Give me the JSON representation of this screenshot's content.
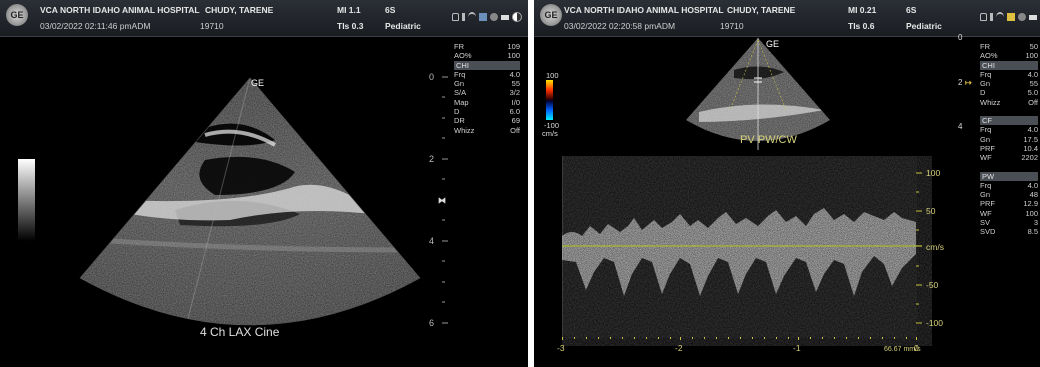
{
  "left_panel": {
    "logo_text": "GE",
    "hospital": "VCA NORTH IDAHO ANIMAL HOSPITAL",
    "patient": "CHUDY, TARENE",
    "datetime": "03/02/2022 02:11:46 pmADM",
    "patient_id": "19710",
    "mi": "MI 1.1",
    "tis": "TIs 0.3",
    "probe": "6S",
    "preset": "Pediatric",
    "orientation_marker": "GE",
    "caption": "4 Ch LAX Cine",
    "depth_ticks": [
      "0",
      "2",
      "4",
      "6"
    ],
    "params": [
      {
        "label": "FR",
        "value": "109"
      },
      {
        "label": "AO%",
        "value": "100"
      },
      {
        "section": "CHI"
      },
      {
        "label": "Frq",
        "value": "4.0"
      },
      {
        "label": "Gn",
        "value": "55"
      },
      {
        "label": "S/A",
        "value": "3/2"
      },
      {
        "label": "Map",
        "value": "I/0"
      },
      {
        "label": "D",
        "value": "6.0"
      },
      {
        "label": "DR",
        "value": "69"
      },
      {
        "label": "Whizz",
        "value": "Off"
      }
    ]
  },
  "right_panel": {
    "logo_text": "GE",
    "hospital": "VCA NORTH IDAHO ANIMAL HOSPITAL",
    "patient": "CHUDY, TARENE",
    "datetime": "03/02/2022 02:20:58 pmADM",
    "patient_id": "19710",
    "mi": "MI 0.21",
    "tis": "TIs 0.6",
    "probe": "6S",
    "preset": "Pediatric",
    "orientation_marker": "GE",
    "doppler_label": "PV PW/CW",
    "color_bar_top": "100",
    "color_bar_bottom": "-100",
    "color_bar_unit": "cm/s",
    "depth_ticks": [
      "0",
      "2",
      "4"
    ],
    "velocity_ticks": [
      "100",
      "50",
      "cm/s",
      "-50",
      "-100"
    ],
    "time_ticks": [
      "-3",
      "-2",
      "-1",
      "0"
    ],
    "sweep_speed": "66.67 mm/s",
    "params": [
      {
        "label": "FR",
        "value": "50"
      },
      {
        "label": "AO%",
        "value": "100"
      },
      {
        "section": "CHI"
      },
      {
        "label": "Frq",
        "value": "4.0"
      },
      {
        "label": "Gn",
        "value": "55"
      },
      {
        "label": "D",
        "value": "5.0"
      },
      {
        "label": "Whizz",
        "value": "Off"
      },
      {
        "gap": true
      },
      {
        "section": "CF"
      },
      {
        "label": "Frq",
        "value": "4.0"
      },
      {
        "label": "Gn",
        "value": "17.5"
      },
      {
        "label": "PRF",
        "value": "10.4"
      },
      {
        "label": "WF",
        "value": "2202"
      },
      {
        "gap": true
      },
      {
        "section": "PW"
      },
      {
        "label": "Frq",
        "value": "4.0"
      },
      {
        "label": "Gn",
        "value": "48"
      },
      {
        "label": "PRF",
        "value": "12.9"
      },
      {
        "label": "WF",
        "value": "100"
      },
      {
        "label": "SV",
        "value": "3"
      },
      {
        "label": "SVD",
        "value": "8.5"
      }
    ]
  },
  "colors": {
    "background": "#000000",
    "header": "#22262c",
    "doppler_text": "#e8e06a",
    "baseline": "#a8b830"
  }
}
